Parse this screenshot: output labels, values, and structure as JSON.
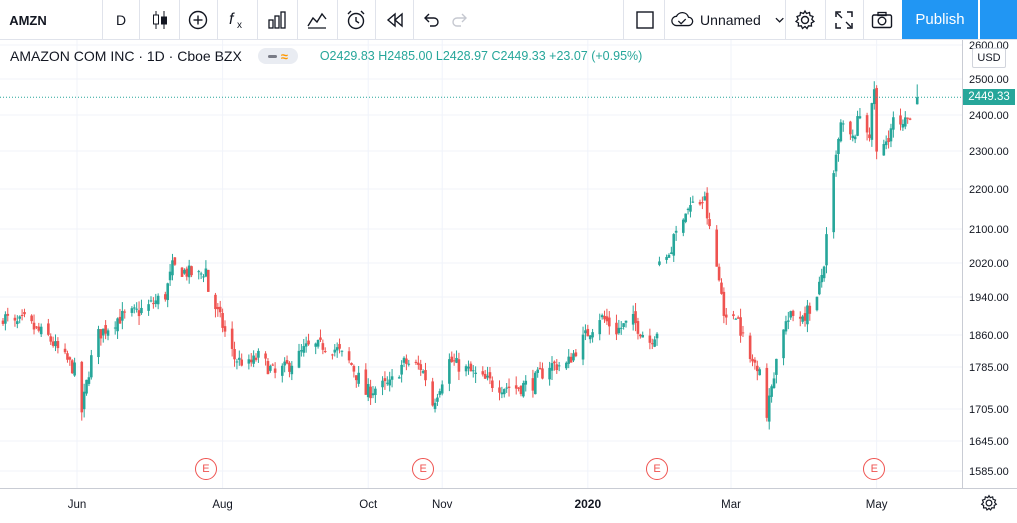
{
  "toolbar": {
    "symbol": "AMZN",
    "interval": "D",
    "layout_name": "Unnamed",
    "publish_label": "Publish",
    "icons": [
      "candles-icon",
      "add-indicator-icon",
      "fx-icon",
      "bar-chart-icon",
      "templates-icon",
      "alert-icon",
      "replay-icon",
      "undo-icon",
      "redo-icon",
      "fullscreen-square-icon",
      "cloud-icon",
      "gear-icon",
      "expand-icon",
      "camera-icon"
    ]
  },
  "legend": {
    "title": "AMAZON COM INC · 1D · Cboe BZX",
    "ohlc": "O2429.83 H2485.00 L2428.97 C2449.33 +23.07 (+0.95%)"
  },
  "price_axis": {
    "currency": "USD",
    "last_price_label": "2449.33"
  },
  "colors": {
    "up": "#26a69a",
    "down": "#ef5350",
    "accent": "#2196f3",
    "grid": "#f0f3fa",
    "earnings": "#ef5350"
  },
  "earnings_marker": "E",
  "chart_data": {
    "type": "candlestick",
    "title": "AMAZON COM INC · 1D · Cboe BZX",
    "y_ticks": [
      1585,
      1645,
      1705,
      1785,
      1860,
      1940,
      2020,
      2100,
      2200,
      2300,
      2400,
      2500,
      2600
    ],
    "y_tick_labels": [
      "1585.00",
      "1645.00",
      "1705.00",
      "1785.00",
      "1860.00",
      "1940.00",
      "2020.00",
      "2100.00",
      "2200.00",
      "2300.00",
      "2400.00",
      "2500.00",
      "2600.00"
    ],
    "x_tick_labels": [
      "Jun",
      "Aug",
      "Oct",
      "Nov",
      "2020",
      "Mar",
      "May"
    ],
    "earnings_dates": [
      "2019-07-25",
      "2019-10-24",
      "2020-01-30",
      "2020-04-30"
    ],
    "last_close": 2449.33,
    "grid": true,
    "close_anchors": [
      [
        "2019-05-01",
        1900
      ],
      [
        "2019-05-06",
        1880
      ],
      [
        "2019-05-10",
        1890
      ],
      [
        "2019-05-15",
        1870
      ],
      [
        "2019-05-20",
        1855
      ],
      [
        "2019-05-24",
        1825
      ],
      [
        "2019-05-31",
        1780
      ],
      [
        "2019-06-03",
        1700
      ],
      [
        "2019-06-07",
        1805
      ],
      [
        "2019-06-10",
        1860
      ],
      [
        "2019-06-18",
        1895
      ],
      [
        "2019-06-25",
        1905
      ],
      [
        "2019-07-01",
        1920
      ],
      [
        "2019-07-08",
        1945
      ],
      [
        "2019-07-11",
        2010
      ],
      [
        "2019-07-16",
        2000
      ],
      [
        "2019-07-22",
        1990
      ],
      [
        "2019-07-25",
        2005
      ],
      [
        "2019-07-26",
        1955
      ],
      [
        "2019-08-01",
        1880
      ],
      [
        "2019-08-06",
        1805
      ],
      [
        "2019-08-12",
        1790
      ],
      [
        "2019-08-16",
        1810
      ],
      [
        "2019-08-23",
        1770
      ],
      [
        "2019-08-29",
        1790
      ],
      [
        "2019-09-05",
        1830
      ],
      [
        "2019-09-12",
        1835
      ],
      [
        "2019-09-18",
        1825
      ],
      [
        "2019-09-24",
        1790
      ],
      [
        "2019-09-30",
        1735
      ],
      [
        "2019-10-04",
        1745
      ],
      [
        "2019-10-10",
        1750
      ],
      [
        "2019-10-16",
        1795
      ],
      [
        "2019-10-23",
        1785
      ],
      [
        "2019-10-25",
        1765
      ],
      [
        "2019-10-28",
        1715
      ],
      [
        "2019-11-04",
        1800
      ],
      [
        "2019-11-11",
        1780
      ],
      [
        "2019-11-18",
        1760
      ],
      [
        "2019-11-25",
        1750
      ],
      [
        "2019-12-02",
        1745
      ],
      [
        "2019-12-09",
        1755
      ],
      [
        "2019-12-16",
        1790
      ],
      [
        "2019-12-23",
        1790
      ],
      [
        "2019-12-30",
        1850
      ],
      [
        "2020-01-06",
        1900
      ],
      [
        "2020-01-13",
        1870
      ],
      [
        "2020-01-20",
        1890
      ],
      [
        "2020-01-27",
        1845
      ],
      [
        "2020-01-30",
        1870
      ],
      [
        "2020-01-31",
        2010
      ],
      [
        "2020-02-05",
        2055
      ],
      [
        "2020-02-10",
        2140
      ],
      [
        "2020-02-14",
        2160
      ],
      [
        "2020-02-19",
        2170
      ],
      [
        "2020-02-21",
        2095
      ],
      [
        "2020-02-24",
        2010
      ],
      [
        "2020-02-28",
        1885
      ],
      [
        "2020-03-03",
        1910
      ],
      [
        "2020-03-09",
        1800
      ],
      [
        "2020-03-13",
        1790
      ],
      [
        "2020-03-16",
        1690
      ],
      [
        "2020-03-18",
        1750
      ],
      [
        "2020-03-23",
        1880
      ],
      [
        "2020-03-27",
        1900
      ],
      [
        "2020-04-01",
        1905
      ],
      [
        "2020-04-06",
        1935
      ],
      [
        "2020-04-09",
        2020
      ],
      [
        "2020-04-14",
        2280
      ],
      [
        "2020-04-16",
        2370
      ],
      [
        "2020-04-21",
        2330
      ],
      [
        "2020-04-24",
        2400
      ],
      [
        "2020-04-28",
        2350
      ],
      [
        "2020-04-30",
        2475
      ],
      [
        "2020-05-01",
        2290
      ],
      [
        "2020-05-04",
        2310
      ],
      [
        "2020-05-08",
        2380
      ],
      [
        "2020-05-12",
        2360
      ],
      [
        "2020-05-18",
        2450
      ]
    ]
  }
}
